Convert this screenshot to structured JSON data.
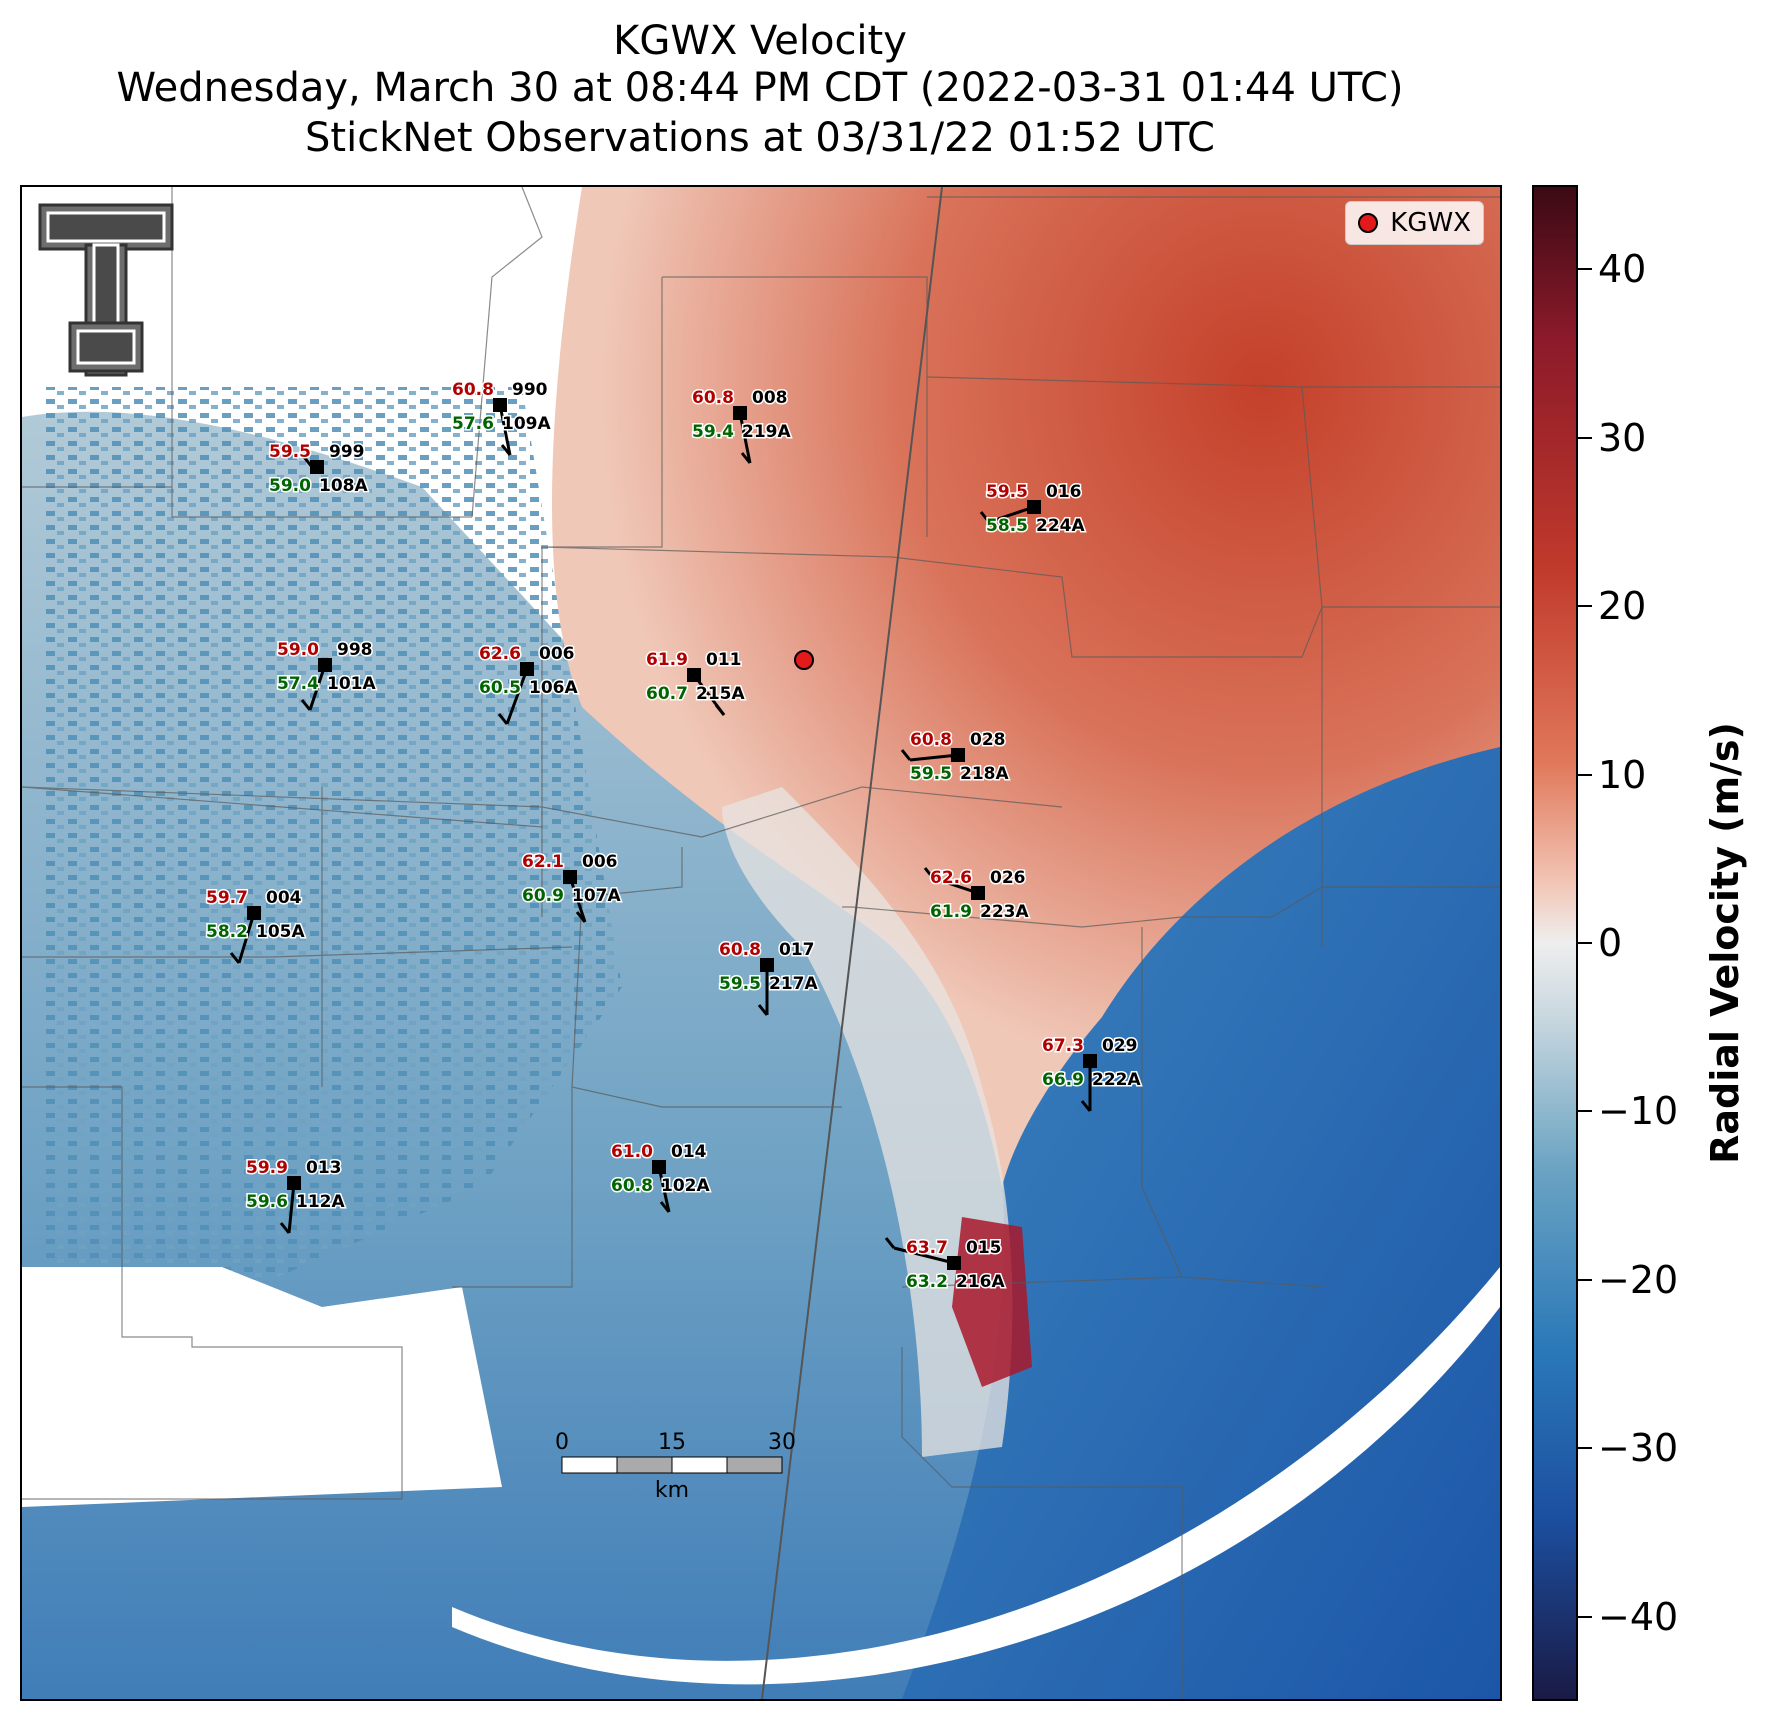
{
  "title": {
    "line1": "KGWX Velocity",
    "line2": "Wednesday, March 30 at 08:44 PM CDT (2022-03-31 01:44 UTC)",
    "line3": "StickNet Observations at 03/31/22 01:52 UTC"
  },
  "legend": {
    "label": "KGWX",
    "color": "#e31a1c"
  },
  "colorbar": {
    "title": "Radial Velocity (m/s)",
    "range": [
      -45,
      45
    ],
    "ticks": [
      "40",
      "30",
      "20",
      "10",
      "0",
      "−10",
      "−20",
      "−30",
      "−40"
    ]
  },
  "scale_bar": {
    "labels": [
      "0",
      "15",
      "30"
    ],
    "unit": "km"
  },
  "stations": [
    {
      "temp": "60.8",
      "dew": "57.6",
      "dir": "990",
      "id": "109A"
    },
    {
      "temp": "59.5",
      "dew": "59.0",
      "dir": "999",
      "id": "108A"
    },
    {
      "temp": "60.8",
      "dew": "59.4",
      "dir": "008",
      "id": "219A"
    },
    {
      "temp": "59.5",
      "dew": "58.5",
      "dir": "016",
      "id": "224A"
    },
    {
      "temp": "59.0",
      "dew": "57.4",
      "dir": "998",
      "id": "101A"
    },
    {
      "temp": "62.6",
      "dew": "60.5",
      "dir": "006",
      "id": "106A"
    },
    {
      "temp": "61.9",
      "dew": "60.7",
      "dir": "011",
      "id": "215A"
    },
    {
      "temp": "60.8",
      "dew": "59.5",
      "dir": "028",
      "id": "218A"
    },
    {
      "temp": "59.7",
      "dew": "58.2",
      "dir": "004",
      "id": "105A"
    },
    {
      "temp": "62.1",
      "dew": "60.9",
      "dir": "006",
      "id": "107A"
    },
    {
      "temp": "62.6",
      "dew": "61.9",
      "dir": "026",
      "id": "223A"
    },
    {
      "temp": "60.8",
      "dew": "59.5",
      "dir": "017",
      "id": "217A"
    },
    {
      "temp": "67.3",
      "dew": "66.9",
      "dir": "029",
      "id": "222A"
    },
    {
      "temp": "59.9",
      "dew": "59.6",
      "dir": "013",
      "id": "112A"
    },
    {
      "temp": "61.0",
      "dew": "60.8",
      "dir": "014",
      "id": "102A"
    },
    {
      "temp": "63.7",
      "dew": "63.2",
      "dir": "015",
      "id": "216A"
    }
  ]
}
